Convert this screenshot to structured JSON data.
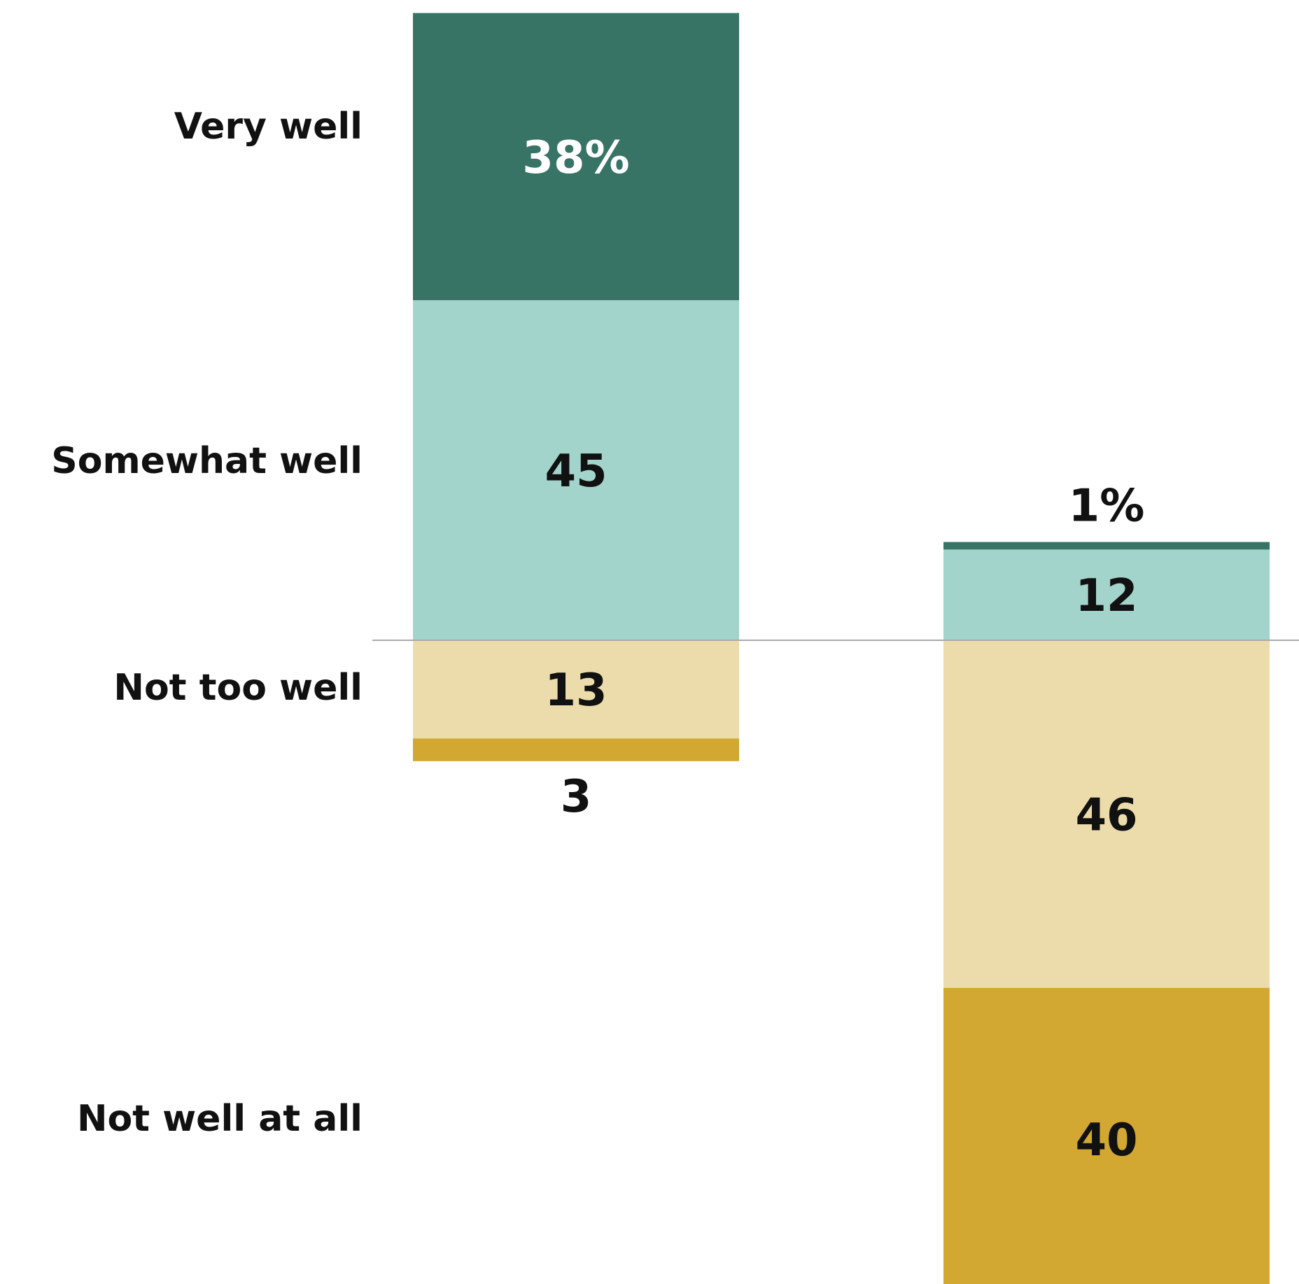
{
  "chart_data": {
    "type": "bar",
    "orientation": "vertical-diverging-stacked",
    "title": "",
    "xlabel": "",
    "ylabel": "",
    "row_labels": [
      "Very well",
      "Somewhat well",
      "Not too well",
      "Not well at all"
    ],
    "series": [
      {
        "name": "Very well",
        "color": "#387466",
        "label_color": "#ffffff",
        "side": "positive",
        "values": [
          38,
          1
        ],
        "labels": [
          "38%",
          "1%"
        ]
      },
      {
        "name": "Somewhat well",
        "color": "#a3d4cb",
        "label_color": "#111111",
        "side": "positive",
        "values": [
          45,
          12
        ],
        "labels": [
          "45",
          "12"
        ]
      },
      {
        "name": "Not too well",
        "color": "#eddcab",
        "label_color": "#111111",
        "side": "negative",
        "values": [
          13,
          46
        ],
        "labels": [
          "13",
          "46"
        ]
      },
      {
        "name": "Not well at all",
        "color": "#d2a832",
        "label_color": "#111111",
        "side": "negative",
        "values": [
          3,
          40
        ],
        "labels": [
          "3",
          "40"
        ]
      }
    ],
    "legend": "none",
    "grid": false,
    "baseline_color": "#aaaaaa"
  }
}
